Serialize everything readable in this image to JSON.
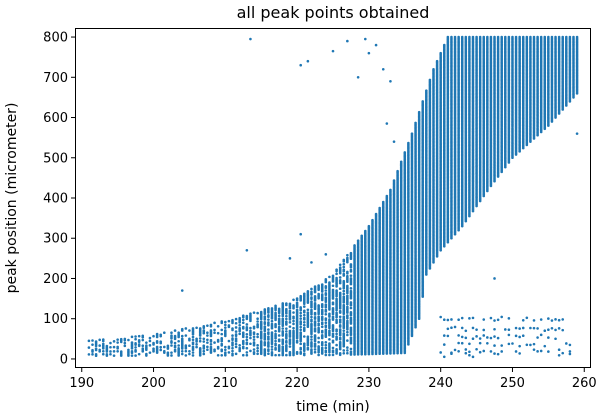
{
  "chart_data": {
    "type": "scatter",
    "title": "all peak points obtained",
    "xlabel": "time (min)",
    "ylabel": "peak position (micrometer)",
    "xlim": [
      189.2,
      260.8
    ],
    "ylim": [
      -20,
      820
    ],
    "xticks": [
      190,
      200,
      210,
      220,
      230,
      240,
      250,
      260
    ],
    "yticks": [
      0,
      100,
      200,
      300,
      400,
      500,
      600,
      700,
      800
    ],
    "grid": false,
    "legend": "none",
    "marker_color": "#1f77b4",
    "series": [
      {
        "time_range": [
          191,
          259
        ],
        "time_step": 0.5,
        "main_band": {
          "lower_edge_points": [
            [
              191,
              8
            ],
            [
              225,
              10
            ],
            [
              230,
              12
            ],
            [
              235,
              15
            ],
            [
              237,
              100
            ],
            [
              238,
              210
            ],
            [
              240,
              270
            ],
            [
              243,
              330
            ],
            [
              247,
              430
            ],
            [
              250,
              500
            ],
            [
              255,
              580
            ],
            [
              259,
              660
            ]
          ],
          "upper_edge_points": [
            [
              191,
              45
            ],
            [
              200,
              60
            ],
            [
              210,
              95
            ],
            [
              215,
              120
            ],
            [
              220,
              150
            ],
            [
              225,
              210
            ],
            [
              230,
              330
            ],
            [
              233,
              420
            ],
            [
              236,
              560
            ],
            [
              239,
              720
            ],
            [
              241,
              800
            ],
            [
              259,
              800
            ]
          ],
          "upper_limit": 800
        },
        "isolated_points": [
          [
            213.5,
            795
          ],
          [
            220.5,
            730
          ],
          [
            221.5,
            740
          ],
          [
            225,
            765
          ],
          [
            227,
            790
          ],
          [
            228.5,
            700
          ],
          [
            229.5,
            795
          ],
          [
            230,
            760
          ],
          [
            231,
            780
          ],
          [
            232,
            720
          ],
          [
            233,
            690
          ],
          [
            232.5,
            585
          ],
          [
            233.5,
            540
          ],
          [
            234.5,
            480
          ],
          [
            240.5,
            700
          ],
          [
            247.5,
            200
          ],
          [
            259,
            560
          ],
          [
            204,
            170
          ],
          [
            213,
            270
          ],
          [
            219,
            250
          ],
          [
            220.5,
            310
          ],
          [
            222,
            240
          ],
          [
            224,
            260
          ]
        ],
        "low_trail": {
          "time_range": [
            240,
            258
          ],
          "values": [
            10,
            20,
            35,
            55,
            75,
            100
          ]
        }
      }
    ]
  }
}
